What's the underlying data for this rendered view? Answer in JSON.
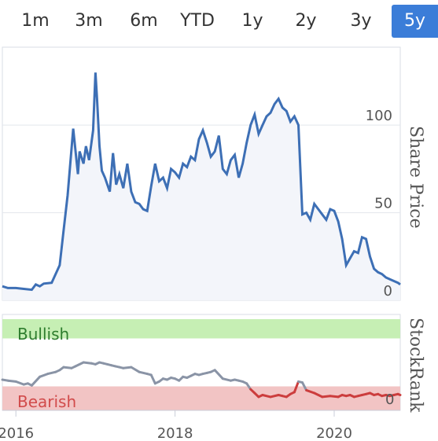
{
  "tabs": [
    {
      "label": "1m",
      "active": false
    },
    {
      "label": "3m",
      "active": false
    },
    {
      "label": "6m",
      "active": false
    },
    {
      "label": "YTD",
      "active": false
    },
    {
      "label": "1y",
      "active": false
    },
    {
      "label": "2y",
      "active": false
    },
    {
      "label": "3y",
      "active": false
    },
    {
      "label": "5y",
      "active": true
    }
  ],
  "colors": {
    "accent": "#3b7dd8",
    "price_line": "#3d6fb5",
    "price_fill": "#f3f5fa",
    "bullish_zone": "#c6efb4",
    "bullish_text": "#2e7d2e",
    "bearish_zone": "#f2c4c4",
    "bearish_text": "#d14b4b",
    "rank_neutral": "#8a94a6",
    "rank_bearish": "#cc3d3d"
  },
  "chart_data": [
    {
      "type": "area",
      "ylabel": "Share Price",
      "ylim": [
        0,
        140
      ],
      "y_ticks": [
        "0",
        "50",
        "100"
      ],
      "x_ticks": [
        "2016",
        "2018",
        "2020"
      ],
      "xlim": [
        2015.83,
        2020.83
      ],
      "grid": true,
      "series": [
        {
          "x": [
            2015.83,
            2015.9,
            2016.0,
            2016.1,
            2016.2,
            2016.25,
            2016.3,
            2016.35,
            2016.45,
            2016.55,
            2016.6,
            2016.65,
            2016.72,
            2016.78,
            2016.8,
            2016.85,
            2016.88,
            2016.92,
            2016.97,
            2017.0,
            2017.02,
            2017.05,
            2017.08,
            2017.12,
            2017.18,
            2017.22,
            2017.26,
            2017.3,
            2017.35,
            2017.4,
            2017.45,
            2017.5,
            2017.55,
            2017.6,
            2017.65,
            2017.7,
            2017.75,
            2017.8,
            2017.85,
            2017.9,
            2017.95,
            2018.0,
            2018.05,
            2018.1,
            2018.15,
            2018.2,
            2018.25,
            2018.3,
            2018.35,
            2018.4,
            2018.45,
            2018.5,
            2018.55,
            2018.6,
            2018.65,
            2018.7,
            2018.75,
            2018.8,
            2018.85,
            2018.9,
            2018.95,
            2019.0,
            2019.05,
            2019.1,
            2019.15,
            2019.2,
            2019.25,
            2019.3,
            2019.35,
            2019.4,
            2019.45,
            2019.5,
            2019.55,
            2019.6,
            2019.65,
            2019.7,
            2019.75,
            2019.8,
            2019.85,
            2019.9,
            2019.95,
            2020.0,
            2020.05,
            2020.1,
            2020.15,
            2020.2,
            2020.25,
            2020.3,
            2020.35,
            2020.4,
            2020.45,
            2020.5,
            2020.55,
            2020.6,
            2020.65,
            2020.7,
            2020.75,
            2020.8,
            2020.83
          ],
          "y": [
            8,
            7,
            7,
            6.5,
            6,
            9,
            8,
            9.5,
            10,
            20,
            40,
            60,
            98,
            72,
            85,
            78,
            88,
            80,
            97,
            130,
            115,
            88,
            74,
            70,
            62,
            84,
            66,
            72,
            64,
            78,
            62,
            56,
            55,
            52,
            51,
            65,
            78,
            68,
            70,
            64,
            75,
            73,
            70,
            78,
            76,
            82,
            80,
            92,
            97,
            90,
            82,
            85,
            94,
            75,
            72,
            80,
            83,
            70,
            78,
            90,
            100,
            106,
            95,
            100,
            105,
            107,
            112,
            115,
            110,
            108,
            102,
            105,
            100,
            49,
            50,
            46,
            55,
            52,
            49,
            46,
            52,
            51,
            45,
            35,
            20,
            24,
            28,
            27,
            36,
            35,
            25,
            18,
            16,
            15,
            13,
            12,
            11,
            10,
            9
          ]
        }
      ]
    },
    {
      "type": "line",
      "ylabel": "StockRank",
      "ylim": [
        0,
        100
      ],
      "y_ticks": [
        "0"
      ],
      "zones": [
        {
          "label": "Bullish",
          "from": 75,
          "to": 100
        },
        {
          "label": "Bearish",
          "from": 0,
          "to": 25
        }
      ],
      "series": [
        {
          "x": [
            2015.83,
            2015.9,
            2016.0,
            2016.1,
            2016.15,
            2016.2,
            2016.3,
            2016.4,
            2016.5,
            2016.55,
            2016.6,
            2016.7,
            2016.75,
            2016.85,
            2016.95,
            2017.0,
            2017.05,
            2017.1,
            2017.15,
            2017.2,
            2017.25,
            2017.3,
            2017.35,
            2017.45,
            2017.55,
            2017.65,
            2017.7,
            2017.75,
            2017.8,
            2017.85,
            2017.9,
            2017.95,
            2018.0,
            2018.05,
            2018.1,
            2018.15,
            2018.2,
            2018.25,
            2018.3,
            2018.35,
            2018.4,
            2018.45,
            2018.5,
            2018.6,
            2018.7,
            2018.75,
            2018.8,
            2018.85,
            2018.9,
            2018.95,
            2019.0,
            2019.05,
            2019.1,
            2019.2,
            2019.3,
            2019.35,
            2019.4,
            2019.45,
            2019.5,
            2019.55,
            2019.6,
            2019.65,
            2019.75,
            2019.85,
            2019.95,
            2020.05,
            2020.1,
            2020.15,
            2020.2,
            2020.25,
            2020.3,
            2020.35,
            2020.4,
            2020.45,
            2020.5,
            2020.55,
            2020.6,
            2020.65,
            2020.7,
            2020.75,
            2020.8,
            2020.83
          ],
          "y": [
            32,
            31,
            30,
            27,
            28,
            26,
            35,
            38,
            40,
            42,
            45,
            44,
            46,
            50,
            49,
            48,
            50,
            49,
            48,
            47,
            46,
            45,
            44,
            45,
            40,
            38,
            37,
            28,
            30,
            33,
            32,
            34,
            33,
            31,
            35,
            34,
            36,
            38,
            37,
            38,
            39,
            40,
            42,
            33,
            31,
            32,
            31,
            30,
            28,
            22,
            18,
            14,
            16,
            14,
            16,
            15,
            14,
            17,
            19,
            30,
            29,
            21,
            18,
            14,
            15,
            14,
            16,
            15,
            16,
            14,
            15,
            16,
            17,
            18,
            16,
            17,
            15,
            16,
            15,
            16,
            17,
            16
          ]
        }
      ]
    }
  ]
}
